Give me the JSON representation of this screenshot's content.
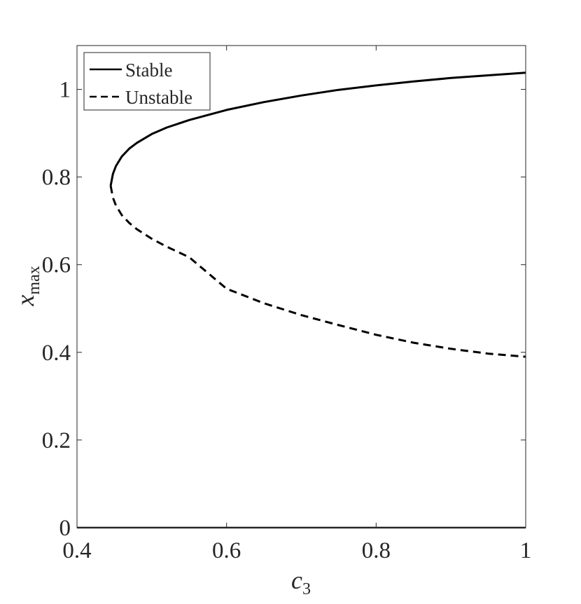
{
  "chart_data": {
    "type": "line",
    "title": "",
    "xlabel": {
      "symbol": "c",
      "subscript": "3"
    },
    "ylabel": {
      "symbol": "x",
      "subscript": "max"
    },
    "xlim": [
      0.4,
      1.0
    ],
    "ylim": [
      0.0,
      1.1
    ],
    "xticks": [
      0.4,
      0.6,
      0.8,
      1.0
    ],
    "xtick_labels": [
      "0.4",
      "0.6",
      "0.8",
      "1"
    ],
    "yticks": [
      0,
      0.2,
      0.4,
      0.6,
      0.8,
      1.0
    ],
    "ytick_labels": [
      "0",
      "0.2",
      "0.4",
      "0.6",
      "0.8",
      "1"
    ],
    "grid": false,
    "legend": {
      "placement": "top-left"
    },
    "series": [
      {
        "name": "Stable",
        "style": "solid",
        "color": "#000000",
        "x": [
          0.445,
          0.448,
          0.452,
          0.46,
          0.47,
          0.48,
          0.5,
          0.52,
          0.55,
          0.6,
          0.65,
          0.7,
          0.75,
          0.8,
          0.85,
          0.9,
          0.95,
          1.0
        ],
        "y": [
          0.78,
          0.807,
          0.825,
          0.847,
          0.865,
          0.878,
          0.898,
          0.913,
          0.93,
          0.953,
          0.971,
          0.986,
          0.999,
          1.009,
          1.018,
          1.026,
          1.032,
          1.038
        ]
      },
      {
        "name": "Unstable",
        "style": "dashed",
        "color": "#000000",
        "x": [
          0.445,
          0.448,
          0.452,
          0.46,
          0.47,
          0.48,
          0.5,
          0.52,
          0.55,
          0.6,
          0.65,
          0.7,
          0.75,
          0.8,
          0.85,
          0.9,
          0.95,
          1.0
        ],
        "y": [
          0.78,
          0.753,
          0.735,
          0.713,
          0.695,
          0.681,
          0.659,
          0.641,
          0.617,
          0.545,
          0.512,
          0.485,
          0.462,
          0.44,
          0.422,
          0.408,
          0.397,
          0.39
        ]
      }
    ]
  }
}
